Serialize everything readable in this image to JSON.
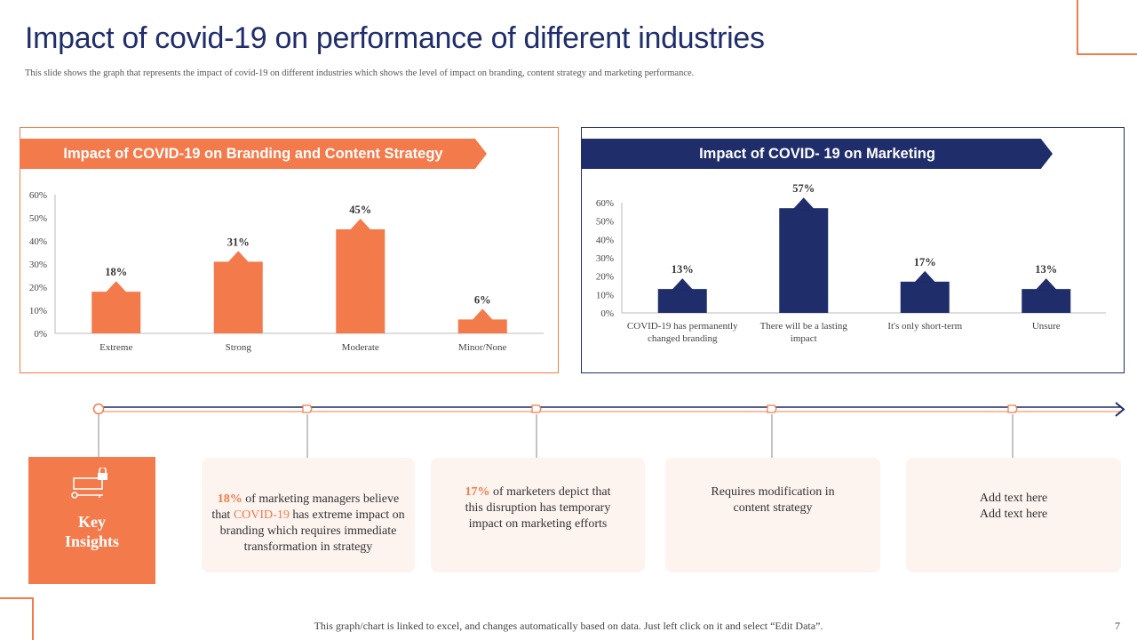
{
  "slide": {
    "title": "Impact of covid-19 on performance of different industries",
    "subtitle": "This slide shows the graph that represents the impact of covid-19 on different industries which shows the level of impact on branding, content strategy and marketing performance.",
    "footer": "This graph/chart is linked to excel,  and changes automatically  based on data. Just left  click  on it and select “Edit Data”.",
    "page_number": "7"
  },
  "colors": {
    "orange": "#f37a4b",
    "navy": "#1f2d6b"
  },
  "chart_data": [
    {
      "type": "bar",
      "title": "Impact of COVID-19 on Branding and Content Strategy",
      "categories": [
        "Extreme",
        "Strong",
        "Moderate",
        "Minor/None"
      ],
      "values": [
        18,
        31,
        45,
        6
      ],
      "value_labels": [
        "18%",
        "31%",
        "45%",
        "6%"
      ],
      "yticks": [
        "0%",
        "10%",
        "20%",
        "30%",
        "40%",
        "50%",
        "60%"
      ],
      "ylim": [
        0,
        60
      ],
      "color": "#f37a4b",
      "xlabel": "",
      "ylabel": ""
    },
    {
      "type": "bar",
      "title": "Impact of COVID- 19 on Marketing",
      "categories": [
        [
          "COVID-19 has permanently",
          "changed branding"
        ],
        [
          "There will be a lasting",
          "impact"
        ],
        [
          "It's only short-term"
        ],
        [
          "Unsure"
        ]
      ],
      "values": [
        13,
        57,
        17,
        13
      ],
      "value_labels": [
        "13%",
        "57%",
        "17%",
        "13%"
      ],
      "yticks": [
        "0%",
        "10%",
        "20%",
        "30%",
        "40%",
        "50%",
        "60%"
      ],
      "ylim": [
        0,
        60
      ],
      "color": "#1f2d6b",
      "xlabel": "",
      "ylabel": ""
    }
  ],
  "insights": {
    "heading_line1": "Key",
    "heading_line2": "Insights",
    "card1": {
      "pct": "18%",
      "text_a": " of marketing managers believe that ",
      "highlight": "COVID-19",
      "text_b": " has extreme impact on branding  which requires immediate transformation in strategy"
    },
    "card2": {
      "pct": "17%",
      "text": " of marketers depict that this disruption has temporary impact on marketing efforts"
    },
    "card3": {
      "text": "Requires modification  in content strategy"
    },
    "card4": {
      "line1": "Add text here",
      "line2": "Add text here"
    }
  }
}
